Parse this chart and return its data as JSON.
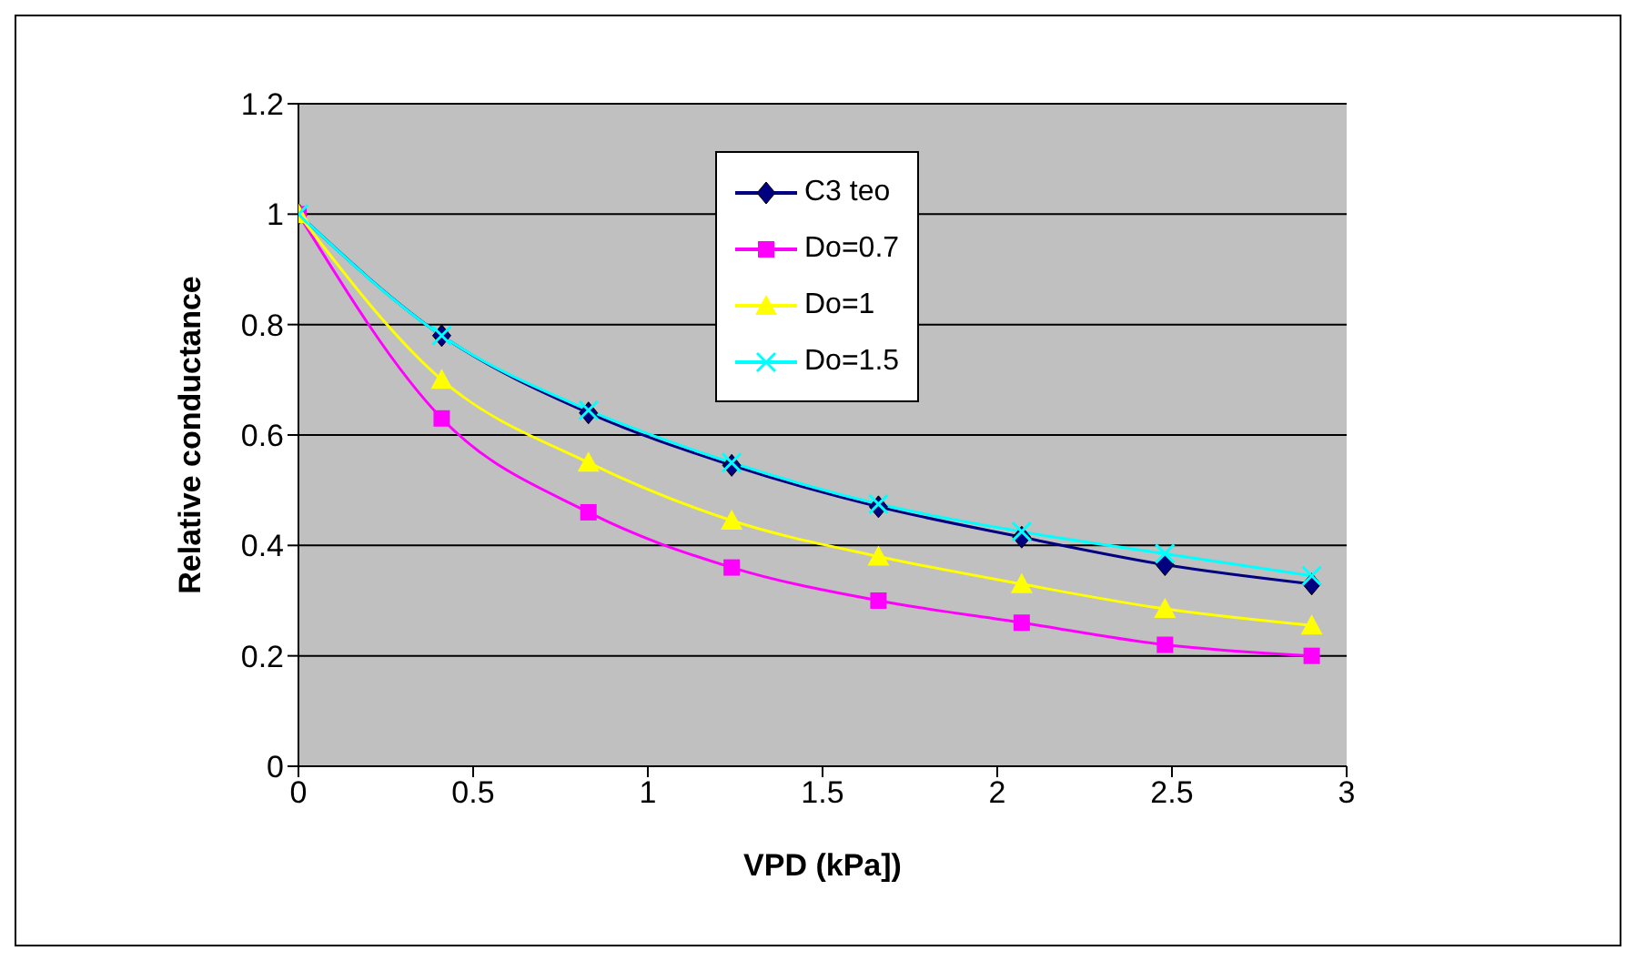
{
  "chart_data": {
    "type": "line",
    "xlabel": "VPD (kPa])",
    "ylabel": "Relative conductance",
    "x": [
      0,
      0.41,
      0.83,
      1.24,
      1.66,
      2.07,
      2.48,
      2.9
    ],
    "series": [
      {
        "name": "C3 teo",
        "color": "#000080",
        "marker": "diamond",
        "values": [
          1,
          0.78,
          0.64,
          0.545,
          0.47,
          0.415,
          0.365,
          0.33
        ]
      },
      {
        "name": "Do=0.7",
        "color": "#ff00ff",
        "marker": "square",
        "values": [
          1,
          0.63,
          0.46,
          0.36,
          0.3,
          0.26,
          0.22,
          0.2
        ]
      },
      {
        "name": "Do=1",
        "color": "#ffff00",
        "marker": "triangle",
        "values": [
          1,
          0.7,
          0.55,
          0.445,
          0.38,
          0.33,
          0.285,
          0.255
        ]
      },
      {
        "name": "Do=1.5",
        "color": "#00ffff",
        "marker": "cross",
        "values": [
          1,
          0.78,
          0.645,
          0.55,
          0.475,
          0.425,
          0.385,
          0.345
        ]
      }
    ],
    "xlim": [
      0,
      3
    ],
    "xticks": [
      0,
      0.5,
      1,
      1.5,
      2,
      2.5,
      3
    ],
    "ylim": [
      0,
      1.2
    ],
    "yticks": [
      0,
      0.2,
      0.4,
      0.6,
      0.8,
      1,
      1.2
    ],
    "grid": "y",
    "legend": "top"
  }
}
